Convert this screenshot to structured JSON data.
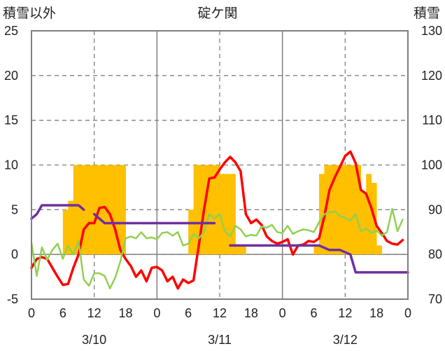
{
  "chart_data": {
    "type": "bar+line",
    "title": "碇ケ関",
    "left_axis": {
      "label": "積雪以外",
      "min": -5,
      "max": 25,
      "ticks": [
        -5,
        0,
        5,
        10,
        15,
        20,
        25
      ]
    },
    "right_axis": {
      "label": "積雪",
      "min": 70,
      "max": 130,
      "ticks": [
        70,
        80,
        90,
        100,
        110,
        120,
        130
      ]
    },
    "x_axis": {
      "min": 0,
      "max": 72,
      "ticks": [
        {
          "x": 0,
          "label": "0"
        },
        {
          "x": 6,
          "label": "6"
        },
        {
          "x": 12,
          "label": "12"
        },
        {
          "x": 18,
          "label": "18"
        },
        {
          "x": 24,
          "label": "0"
        },
        {
          "x": 30,
          "label": "6"
        },
        {
          "x": 36,
          "label": "12"
        },
        {
          "x": 42,
          "label": "18"
        },
        {
          "x": 48,
          "label": "0"
        },
        {
          "x": 54,
          "label": "6"
        },
        {
          "x": 60,
          "label": "12"
        },
        {
          "x": 66,
          "label": "18"
        },
        {
          "x": 72,
          "label": "0"
        }
      ],
      "day_labels": [
        {
          "x": 12,
          "label": "3/10"
        },
        {
          "x": 36,
          "label": "3/11"
        },
        {
          "x": 60,
          "label": "3/12"
        }
      ],
      "day_boundaries": [
        24,
        48
      ],
      "noon_lines": [
        12,
        36,
        60
      ]
    },
    "grid": true,
    "colors": {
      "bars": "#FFC000",
      "red": "#FF0000",
      "green": "#92D050",
      "purple": "#7030A0",
      "grid": "#808080"
    },
    "bars": {
      "axis": "left",
      "hours": [
        {
          "x": 6.5,
          "v": 5
        },
        {
          "x": 7.5,
          "v": 6
        },
        {
          "x": 8.5,
          "v": 10
        },
        {
          "x": 9.5,
          "v": 10
        },
        {
          "x": 10.5,
          "v": 10
        },
        {
          "x": 11.5,
          "v": 10
        },
        {
          "x": 12.5,
          "v": 10
        },
        {
          "x": 13.5,
          "v": 10
        },
        {
          "x": 14.5,
          "v": 10
        },
        {
          "x": 15.5,
          "v": 10
        },
        {
          "x": 16.5,
          "v": 10
        },
        {
          "x": 17.5,
          "v": 10
        },
        {
          "x": 30.5,
          "v": 5
        },
        {
          "x": 31.5,
          "v": 10
        },
        {
          "x": 32.5,
          "v": 10
        },
        {
          "x": 33.5,
          "v": 10
        },
        {
          "x": 34.5,
          "v": 10
        },
        {
          "x": 35.5,
          "v": 10
        },
        {
          "x": 36.5,
          "v": 9
        },
        {
          "x": 37.5,
          "v": 9
        },
        {
          "x": 38.5,
          "v": 9
        },
        {
          "x": 39.5,
          "v": 1
        },
        {
          "x": 40.5,
          "v": 1
        },
        {
          "x": 54.5,
          "v": 1
        },
        {
          "x": 55.5,
          "v": 9
        },
        {
          "x": 56.5,
          "v": 10
        },
        {
          "x": 57.5,
          "v": 10
        },
        {
          "x": 58.5,
          "v": 10
        },
        {
          "x": 59.5,
          "v": 10
        },
        {
          "x": 60.5,
          "v": 10
        },
        {
          "x": 61.5,
          "v": 10
        },
        {
          "x": 62.5,
          "v": 10
        },
        {
          "x": 63.5,
          "v": 7
        },
        {
          "x": 64.5,
          "v": 9
        },
        {
          "x": 65.5,
          "v": 8
        },
        {
          "x": 66.5,
          "v": 1
        }
      ]
    },
    "series": [
      {
        "color_key": "red",
        "axis": "left",
        "points": [
          [
            0,
            -1.5
          ],
          [
            1,
            -0.5
          ],
          [
            2,
            -0.3
          ],
          [
            3,
            -0.5
          ],
          [
            4,
            -1.5
          ],
          [
            5,
            -2.5
          ],
          [
            6,
            -3.4
          ],
          [
            7,
            -3.3
          ],
          [
            8,
            -1.5
          ],
          [
            9,
            0
          ],
          [
            10,
            2.8
          ],
          [
            11,
            3.5
          ],
          [
            12,
            3.5
          ],
          [
            13,
            5.2
          ],
          [
            14,
            5.3
          ],
          [
            15,
            4.5
          ],
          [
            16,
            2.8
          ],
          [
            17,
            0.5
          ],
          [
            18,
            -0.5
          ],
          [
            19,
            -1.3
          ],
          [
            20,
            -2.5
          ],
          [
            21,
            -1.8
          ],
          [
            22,
            -3
          ],
          [
            23,
            -1.5
          ],
          [
            24,
            -1.4
          ],
          [
            25,
            -1.8
          ],
          [
            26,
            -3
          ],
          [
            27,
            -2.5
          ],
          [
            28,
            -3.8
          ],
          [
            29,
            -2.8
          ],
          [
            30,
            -3.2
          ],
          [
            31,
            -2.9
          ],
          [
            32,
            1
          ],
          [
            33,
            5
          ],
          [
            34,
            8.5
          ],
          [
            35,
            8.6
          ],
          [
            36,
            9.5
          ],
          [
            37,
            10.3
          ],
          [
            38,
            10.9
          ],
          [
            39,
            10.3
          ],
          [
            40,
            9.3
          ],
          [
            41,
            4.5
          ],
          [
            42,
            3.5
          ],
          [
            43,
            3.9
          ],
          [
            44,
            3.3
          ],
          [
            45,
            2
          ],
          [
            46,
            1.5
          ],
          [
            47,
            1.2
          ],
          [
            48,
            1.4
          ],
          [
            49,
            1.7
          ],
          [
            50,
            0
          ],
          [
            51,
            1
          ],
          [
            52,
            1.1
          ],
          [
            53,
            1.5
          ],
          [
            54,
            1.4
          ],
          [
            55,
            1.8
          ],
          [
            56,
            4.2
          ],
          [
            57,
            7.2
          ],
          [
            58,
            8.6
          ],
          [
            59,
            9.8
          ],
          [
            60,
            11.0
          ],
          [
            61,
            11.5
          ],
          [
            62,
            10.2
          ],
          [
            63,
            7.2
          ],
          [
            64,
            6.8
          ],
          [
            65,
            5.2
          ],
          [
            66,
            3.2
          ],
          [
            67,
            2.4
          ],
          [
            68,
            1.5
          ],
          [
            69,
            1.2
          ],
          [
            70,
            1.1
          ],
          [
            71,
            1.6
          ]
        ]
      },
      {
        "color_key": "green",
        "axis": "left",
        "points": [
          [
            0,
            1.3
          ],
          [
            1,
            -2.4
          ],
          [
            2,
            0.8
          ],
          [
            3,
            -0.6
          ],
          [
            4,
            0.5
          ],
          [
            5,
            1.2
          ],
          [
            6,
            -0.5
          ],
          [
            7,
            1
          ],
          [
            8,
            0
          ],
          [
            9,
            1.5
          ],
          [
            10,
            -2.8
          ],
          [
            11,
            -3.5
          ],
          [
            12,
            -2.1
          ],
          [
            13,
            -2.1
          ],
          [
            14,
            -2.4
          ],
          [
            15,
            -3.8
          ],
          [
            16,
            -2.6
          ],
          [
            17,
            -0.8
          ],
          [
            18,
            1.8
          ],
          [
            19,
            2
          ],
          [
            20,
            1.8
          ],
          [
            21,
            2.5
          ],
          [
            22,
            1.8
          ],
          [
            23,
            1.9
          ],
          [
            24,
            1.7
          ],
          [
            25,
            2.4
          ],
          [
            26,
            2.5
          ],
          [
            27,
            2.1
          ],
          [
            28,
            2.5
          ],
          [
            29,
            1
          ],
          [
            30,
            1.2
          ],
          [
            31,
            2.3
          ],
          [
            32,
            1.8
          ],
          [
            33,
            2.5
          ],
          [
            34,
            4.5
          ],
          [
            35,
            4
          ],
          [
            36,
            4.5
          ],
          [
            37,
            2.6
          ],
          [
            38,
            2
          ],
          [
            39,
            3.2
          ],
          [
            40,
            2.8
          ],
          [
            41,
            2
          ],
          [
            42,
            2.2
          ],
          [
            43,
            2.1
          ],
          [
            44,
            3.1
          ],
          [
            45,
            3
          ],
          [
            46,
            3.3
          ],
          [
            47,
            2.5
          ],
          [
            48,
            2.4
          ],
          [
            49,
            3.2
          ],
          [
            50,
            2.3
          ],
          [
            51,
            2.6
          ],
          [
            52,
            2.8
          ],
          [
            53,
            2.7
          ],
          [
            54,
            2.5
          ],
          [
            55,
            3.6
          ],
          [
            56,
            4.5
          ],
          [
            57,
            4.7
          ],
          [
            58,
            4.8
          ],
          [
            59,
            4.3
          ],
          [
            60,
            4.1
          ],
          [
            61,
            3.8
          ],
          [
            62,
            4.5
          ],
          [
            63,
            2.6
          ],
          [
            64,
            2.9
          ],
          [
            65,
            2.4
          ],
          [
            66,
            2.7
          ],
          [
            67,
            2.1
          ],
          [
            68,
            2.5
          ],
          [
            69,
            5.1
          ],
          [
            70,
            2.6
          ],
          [
            71,
            3.9
          ]
        ]
      },
      {
        "color_key": "purple",
        "axis": "right",
        "segments": [
          [
            [
              0,
              88
            ],
            [
              1,
              89
            ],
            [
              2,
              91
            ],
            [
              7,
              91
            ],
            [
              9,
              91
            ],
            [
              10,
              90
            ]
          ],
          [
            [
              12,
              89
            ],
            [
              14,
              87
            ],
            [
              24,
              87
            ],
            [
              35,
              87
            ]
          ],
          [
            [
              38,
              82
            ],
            [
              49,
              82
            ],
            [
              55,
              82
            ],
            [
              57,
              81
            ],
            [
              59,
              81
            ],
            [
              61,
              80
            ],
            [
              62,
              76
            ],
            [
              72,
              76
            ]
          ]
        ]
      }
    ]
  }
}
